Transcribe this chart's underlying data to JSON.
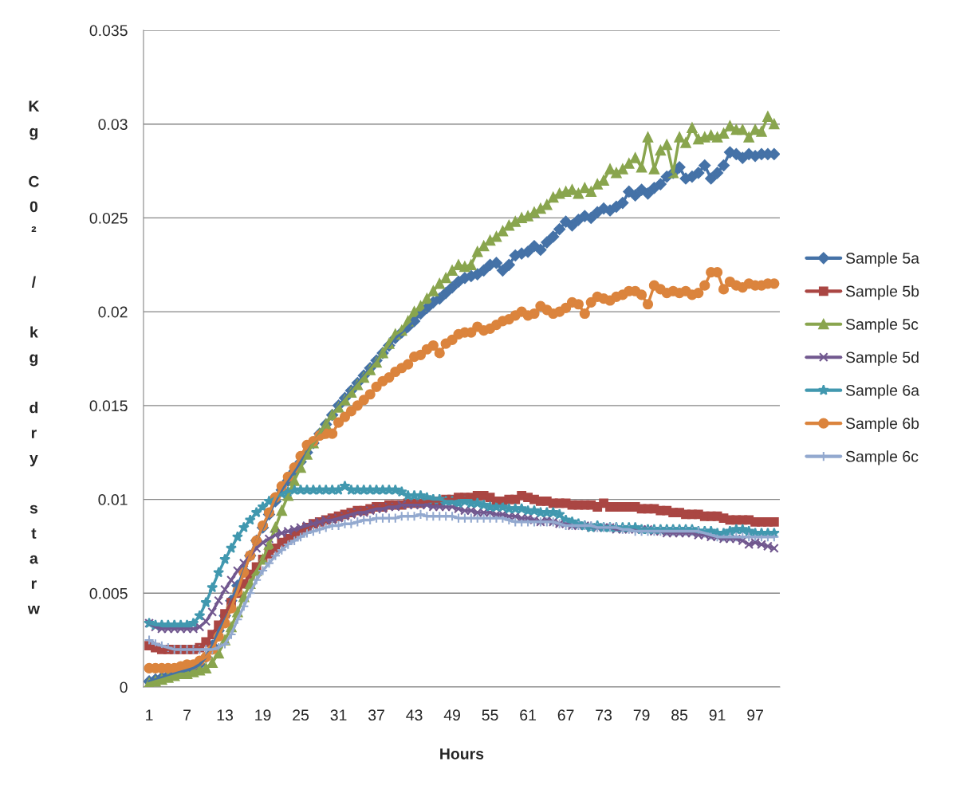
{
  "chart_data": {
    "type": "line",
    "xlabel": "Hours",
    "ylabel": "Kg C0² / kg dry starw",
    "categories": [
      "1",
      null,
      null,
      null,
      null,
      null,
      "7",
      null,
      null,
      null,
      null,
      null,
      "13",
      null,
      null,
      null,
      null,
      null,
      "19",
      null,
      null,
      null,
      null,
      null,
      "25",
      null,
      null,
      null,
      null,
      null,
      "31",
      null,
      null,
      null,
      null,
      null,
      "37",
      null,
      null,
      null,
      null,
      null,
      "43",
      null,
      null,
      null,
      null,
      null,
      "49",
      null,
      null,
      null,
      null,
      null,
      "55",
      null,
      null,
      null,
      null,
      null,
      "61",
      null,
      null,
      null,
      null,
      null,
      "67",
      null,
      null,
      null,
      null,
      null,
      "73",
      null,
      null,
      null,
      null,
      null,
      "79",
      null,
      null,
      null,
      null,
      null,
      "85",
      null,
      null,
      null,
      null,
      null,
      "91",
      null,
      null,
      null,
      null,
      null,
      "97",
      null,
      null,
      null
    ],
    "ylim": [
      0,
      0.035
    ],
    "yticks": [
      0,
      0.005,
      0.01,
      0.015,
      0.02,
      0.025,
      0.03,
      0.035
    ],
    "grid": "y",
    "legend": "right",
    "series": [
      {
        "name": "Sample 5a",
        "color": "#4572a7",
        "marker": "diamond",
        "values": [
          0.0003,
          0.0004,
          0.0005,
          0.0006,
          0.0007,
          0.0008,
          0.0009,
          0.001,
          0.0012,
          0.0016,
          0.0022,
          0.003,
          0.0038,
          0.0046,
          0.0054,
          0.0062,
          0.007,
          0.0078,
          0.0085,
          0.0092,
          0.0099,
          0.0105,
          0.011,
          0.0115,
          0.012,
          0.0125,
          0.013,
          0.0135,
          0.014,
          0.0145,
          0.015,
          0.0154,
          0.0158,
          0.0162,
          0.0166,
          0.017,
          0.0174,
          0.0178,
          0.0182,
          0.0186,
          0.0189,
          0.0192,
          0.0195,
          0.0199,
          0.0202,
          0.0205,
          0.0207,
          0.021,
          0.0213,
          0.0216,
          0.0218,
          0.0219,
          0.022,
          0.0222,
          0.0225,
          0.0226,
          0.0222,
          0.0225,
          0.023,
          0.0231,
          0.0232,
          0.0235,
          0.0233,
          0.0237,
          0.024,
          0.0244,
          0.0248,
          0.0246,
          0.0249,
          0.0251,
          0.025,
          0.0253,
          0.0255,
          0.0254,
          0.0256,
          0.0258,
          0.0264,
          0.0262,
          0.0265,
          0.0263,
          0.0266,
          0.0268,
          0.0272,
          0.0274,
          0.0277,
          0.0271,
          0.0272,
          0.0274,
          0.0278,
          0.0271,
          0.0274,
          0.0278,
          0.0285,
          0.0284,
          0.0282,
          0.0284,
          0.0283,
          0.0284,
          0.0284,
          0.0284
        ]
      },
      {
        "name": "Sample 5b",
        "color": "#aa4643",
        "marker": "square",
        "values": [
          0.0022,
          0.0021,
          0.002,
          0.002,
          0.002,
          0.002,
          0.002,
          0.002,
          0.0021,
          0.0024,
          0.0028,
          0.0033,
          0.0039,
          0.0045,
          0.005,
          0.0055,
          0.006,
          0.0064,
          0.0068,
          0.0071,
          0.0074,
          0.0077,
          0.0079,
          0.0081,
          0.0083,
          0.0085,
          0.0087,
          0.0088,
          0.0089,
          0.009,
          0.0091,
          0.0092,
          0.0093,
          0.0094,
          0.0094,
          0.0095,
          0.0096,
          0.0096,
          0.0097,
          0.0097,
          0.0097,
          0.0098,
          0.0098,
          0.0098,
          0.0099,
          0.0099,
          0.0099,
          0.01,
          0.01,
          0.0101,
          0.0101,
          0.0101,
          0.0102,
          0.0102,
          0.0101,
          0.0099,
          0.0099,
          0.01,
          0.01,
          0.0102,
          0.0101,
          0.01,
          0.0099,
          0.0099,
          0.0098,
          0.0098,
          0.0098,
          0.0097,
          0.0097,
          0.0097,
          0.0097,
          0.0096,
          0.0098,
          0.0096,
          0.0096,
          0.0096,
          0.0096,
          0.0096,
          0.0095,
          0.0095,
          0.0095,
          0.0094,
          0.0094,
          0.0093,
          0.0093,
          0.0092,
          0.0092,
          0.0092,
          0.0091,
          0.0091,
          0.0091,
          0.009,
          0.0089,
          0.0089,
          0.0089,
          0.0089,
          0.0088,
          0.0088,
          0.0088,
          0.0088
        ]
      },
      {
        "name": "Sample 5c",
        "color": "#89a54e",
        "marker": "triangle",
        "values": [
          0.0002,
          0.0003,
          0.0004,
          0.0005,
          0.0006,
          0.0007,
          0.0007,
          0.0008,
          0.0009,
          0.001,
          0.0013,
          0.0018,
          0.0025,
          0.0032,
          0.004,
          0.0048,
          0.0055,
          0.0062,
          0.0068,
          0.0076,
          0.0085,
          0.0094,
          0.0102,
          0.011,
          0.0117,
          0.0124,
          0.013,
          0.0135,
          0.014,
          0.0145,
          0.0149,
          0.0153,
          0.0157,
          0.0161,
          0.0165,
          0.0169,
          0.0173,
          0.0178,
          0.0183,
          0.0188,
          0.019,
          0.0195,
          0.02,
          0.0203,
          0.0207,
          0.0211,
          0.0215,
          0.0218,
          0.0222,
          0.0225,
          0.0224,
          0.0225,
          0.0232,
          0.0235,
          0.0238,
          0.024,
          0.0243,
          0.0246,
          0.0248,
          0.025,
          0.0251,
          0.0253,
          0.0255,
          0.0257,
          0.0261,
          0.0263,
          0.0264,
          0.0265,
          0.0263,
          0.0266,
          0.0264,
          0.0268,
          0.027,
          0.0276,
          0.0274,
          0.0276,
          0.0279,
          0.0282,
          0.0277,
          0.0293,
          0.0276,
          0.0286,
          0.0289,
          0.0274,
          0.0293,
          0.029,
          0.0298,
          0.0292,
          0.0293,
          0.0294,
          0.0293,
          0.0295,
          0.0299,
          0.0297,
          0.0297,
          0.0293,
          0.0297,
          0.0296,
          0.0304,
          0.03
        ]
      },
      {
        "name": "Sample 5d",
        "color": "#71588f",
        "marker": "cross",
        "values": [
          0.0034,
          0.0032,
          0.0031,
          0.0031,
          0.0031,
          0.0031,
          0.0031,
          0.0031,
          0.0032,
          0.0035,
          0.004,
          0.0046,
          0.0052,
          0.0057,
          0.0062,
          0.0066,
          0.007,
          0.0074,
          0.0077,
          0.0079,
          0.0081,
          0.0082,
          0.0083,
          0.0084,
          0.0085,
          0.0086,
          0.0087,
          0.0088,
          0.0089,
          0.0089,
          0.009,
          0.0091,
          0.0092,
          0.0093,
          0.0093,
          0.0094,
          0.0095,
          0.0095,
          0.0096,
          0.0096,
          0.0097,
          0.0097,
          0.0097,
          0.0097,
          0.0097,
          0.0096,
          0.0096,
          0.0096,
          0.0096,
          0.0095,
          0.0094,
          0.0094,
          0.0093,
          0.0093,
          0.0093,
          0.0092,
          0.0092,
          0.0091,
          0.0091,
          0.009,
          0.009,
          0.0089,
          0.0088,
          0.0089,
          0.0088,
          0.0087,
          0.0087,
          0.0086,
          0.0086,
          0.0086,
          0.0085,
          0.0085,
          0.0085,
          0.0085,
          0.0084,
          0.0084,
          0.0084,
          0.0084,
          0.0084,
          0.0084,
          0.0083,
          0.0083,
          0.0082,
          0.0082,
          0.0082,
          0.0082,
          0.0082,
          0.0081,
          0.0081,
          0.008,
          0.008,
          0.0079,
          0.0079,
          0.0079,
          0.0078,
          0.0076,
          0.0077,
          0.0076,
          0.0075,
          0.0074
        ]
      },
      {
        "name": "Sample 6a",
        "color": "#4198af",
        "marker": "star",
        "values": [
          0.0034,
          0.0033,
          0.0033,
          0.0033,
          0.0033,
          0.0033,
          0.0033,
          0.0034,
          0.0038,
          0.0045,
          0.0053,
          0.0061,
          0.0068,
          0.0074,
          0.008,
          0.0085,
          0.0089,
          0.0093,
          0.0096,
          0.0099,
          0.0101,
          0.0103,
          0.0104,
          0.0105,
          0.0105,
          0.0105,
          0.0105,
          0.0105,
          0.0105,
          0.0105,
          0.0105,
          0.0107,
          0.0105,
          0.0105,
          0.0105,
          0.0105,
          0.0105,
          0.0105,
          0.0105,
          0.0105,
          0.0104,
          0.0102,
          0.0102,
          0.0102,
          0.0101,
          0.01,
          0.01,
          0.0099,
          0.0099,
          0.0098,
          0.0099,
          0.0098,
          0.0098,
          0.0097,
          0.0096,
          0.0096,
          0.0096,
          0.0095,
          0.0095,
          0.0095,
          0.0094,
          0.0094,
          0.0093,
          0.0093,
          0.0093,
          0.0092,
          0.0089,
          0.0088,
          0.0087,
          0.0086,
          0.0085,
          0.0086,
          0.0085,
          0.0085,
          0.0085,
          0.0085,
          0.0085,
          0.0085,
          0.0084,
          0.0084,
          0.0084,
          0.0084,
          0.0084,
          0.0084,
          0.0084,
          0.0084,
          0.0084,
          0.0083,
          0.0083,
          0.0083,
          0.0082,
          0.0082,
          0.0083,
          0.0084,
          0.0084,
          0.0083,
          0.0082,
          0.0082,
          0.0082,
          0.0082
        ]
      },
      {
        "name": "Sample 6b",
        "color": "#db843d",
        "marker": "circle",
        "values": [
          0.001,
          0.001,
          0.001,
          0.001,
          0.001,
          0.0011,
          0.0012,
          0.0012,
          0.0014,
          0.0016,
          0.002,
          0.0027,
          0.0034,
          0.0042,
          0.0051,
          0.0061,
          0.007,
          0.0078,
          0.0086,
          0.0093,
          0.0101,
          0.0107,
          0.0112,
          0.0117,
          0.0123,
          0.0129,
          0.0131,
          0.0134,
          0.0135,
          0.0135,
          0.0141,
          0.0144,
          0.0147,
          0.015,
          0.0153,
          0.0156,
          0.016,
          0.0163,
          0.0165,
          0.0168,
          0.017,
          0.0172,
          0.0176,
          0.0177,
          0.018,
          0.0182,
          0.0178,
          0.0183,
          0.0185,
          0.0188,
          0.0189,
          0.0189,
          0.0192,
          0.019,
          0.0191,
          0.0193,
          0.0195,
          0.0196,
          0.0198,
          0.02,
          0.0198,
          0.0199,
          0.0203,
          0.0201,
          0.0199,
          0.02,
          0.0202,
          0.0205,
          0.0204,
          0.0199,
          0.0205,
          0.0208,
          0.0207,
          0.0206,
          0.0208,
          0.0209,
          0.0211,
          0.0211,
          0.0209,
          0.0204,
          0.0214,
          0.0212,
          0.021,
          0.0211,
          0.021,
          0.0211,
          0.0209,
          0.021,
          0.0214,
          0.0221,
          0.0221,
          0.0212,
          0.0216,
          0.0214,
          0.0213,
          0.0215,
          0.0214,
          0.0214,
          0.0215,
          0.0215
        ]
      },
      {
        "name": "Sample 6c",
        "color": "#93a9cf",
        "marker": "plus",
        "values": [
          0.0025,
          0.0023,
          0.0022,
          0.0021,
          0.002,
          0.002,
          0.002,
          0.002,
          0.002,
          0.002,
          0.002,
          0.0021,
          0.0023,
          0.0028,
          0.0036,
          0.0043,
          0.005,
          0.0057,
          0.0062,
          0.0066,
          0.007,
          0.0073,
          0.0076,
          0.0078,
          0.008,
          0.0082,
          0.0083,
          0.0084,
          0.0085,
          0.0086,
          0.0086,
          0.0087,
          0.0087,
          0.0088,
          0.0089,
          0.0089,
          0.009,
          0.009,
          0.009,
          0.009,
          0.0091,
          0.0091,
          0.0091,
          0.0092,
          0.0091,
          0.0091,
          0.0091,
          0.0091,
          0.0091,
          0.009,
          0.009,
          0.009,
          0.009,
          0.009,
          0.009,
          0.009,
          0.009,
          0.0089,
          0.0088,
          0.0088,
          0.0088,
          0.0088,
          0.0088,
          0.0088,
          0.0088,
          0.0087,
          0.0086,
          0.0086,
          0.0086,
          0.0086,
          0.0086,
          0.0085,
          0.0085,
          0.0085,
          0.0085,
          0.0084,
          0.0084,
          0.0083,
          0.0083,
          0.0083,
          0.0083,
          0.0083,
          0.0083,
          0.0083,
          0.0083,
          0.0083,
          0.0083,
          0.0083,
          0.0082,
          0.0081,
          0.008,
          0.008,
          0.008,
          0.008,
          0.008,
          0.008,
          0.008,
          0.008,
          0.008,
          0.008
        ]
      }
    ]
  }
}
